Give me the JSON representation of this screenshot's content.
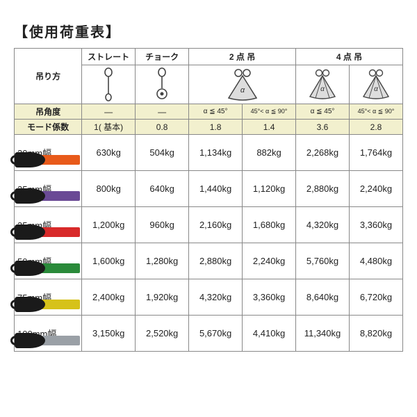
{
  "title": "【使用荷重表】",
  "header": {
    "corner": "吊り方",
    "methods": [
      "ストレート",
      "チョーク",
      "2 点 吊",
      "4 点 吊"
    ],
    "angle_label": "吊角度",
    "angles": [
      "—",
      "—",
      "α ≦ 45°",
      "45°< α ≦ 90°",
      "α ≦ 45°",
      "45°< α ≦ 90°"
    ],
    "coef_label": "モード係数",
    "coefs": [
      "1( 基本)",
      "0.8",
      "1.8",
      "1.4",
      "3.6",
      "2.8"
    ]
  },
  "rows": [
    {
      "label": "20mm幅",
      "strap_color": "#e85a1a",
      "values": [
        "630kg",
        "504kg",
        "1,134kg",
        "882kg",
        "2,268kg",
        "1,764kg"
      ]
    },
    {
      "label": "25mm幅",
      "strap_color": "#6a4a95",
      "values": [
        "800kg",
        "640kg",
        "1,440kg",
        "1,120kg",
        "2,880kg",
        "2,240kg"
      ]
    },
    {
      "label": "35mm幅",
      "strap_color": "#d82a2a",
      "values": [
        "1,200kg",
        "960kg",
        "2,160kg",
        "1,680kg",
        "4,320kg",
        "3,360kg"
      ]
    },
    {
      "label": "50mm幅",
      "strap_color": "#2a8a3a",
      "values": [
        "1,600kg",
        "1,280kg",
        "2,880kg",
        "2,240kg",
        "5,760kg",
        "4,480kg"
      ]
    },
    {
      "label": "75mm幅",
      "strap_color": "#d6c21a",
      "values": [
        "2,400kg",
        "1,920kg",
        "4,320kg",
        "3,360kg",
        "8,640kg",
        "6,720kg"
      ]
    },
    {
      "label": "100mm幅",
      "strap_color": "#9aa0a6",
      "values": [
        "3,150kg",
        "2,520kg",
        "5,670kg",
        "4,410kg",
        "11,340kg",
        "8,820kg"
      ]
    }
  ],
  "colors": {
    "header_bg": "#f2f0ce",
    "border": "#888888",
    "ink": "#222222"
  }
}
